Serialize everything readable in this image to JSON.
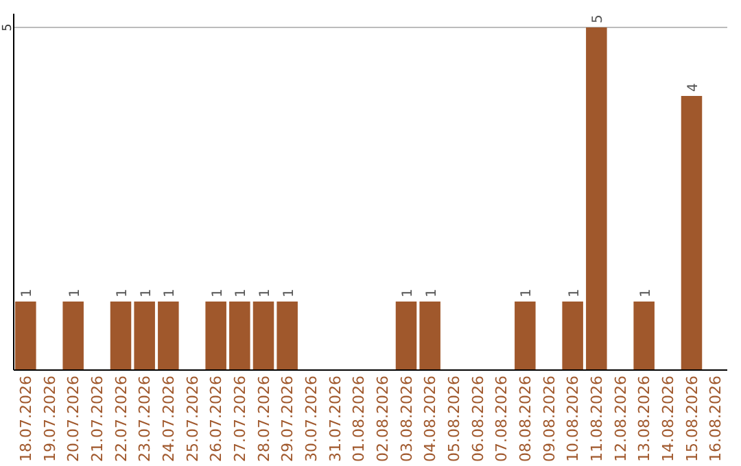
{
  "chart_data": {
    "type": "bar",
    "categories": [
      "18.07.2026",
      "19.07.2026",
      "20.07.2026",
      "21.07.2026",
      "22.07.2026",
      "23.07.2026",
      "24.07.2026",
      "25.07.2026",
      "26.07.2026",
      "27.07.2026",
      "28.07.2026",
      "29.07.2026",
      "30.07.2026",
      "31.07.2026",
      "01.08.2026",
      "02.08.2026",
      "03.08.2026",
      "04.08.2026",
      "05.08.2026",
      "06.08.2026",
      "07.08.2026",
      "08.08.2026",
      "09.08.2026",
      "10.08.2026",
      "11.08.2026",
      "12.08.2026",
      "13.08.2026",
      "14.08.2026",
      "15.08.2026",
      "16.08.2026"
    ],
    "values": [
      1,
      0,
      1,
      0,
      1,
      1,
      1,
      0,
      1,
      1,
      1,
      1,
      0,
      0,
      0,
      0,
      1,
      1,
      0,
      0,
      0,
      1,
      0,
      1,
      5,
      0,
      1,
      0,
      4,
      0
    ],
    "value_labels": [
      "1",
      null,
      "1",
      null,
      "1",
      "1",
      "1",
      null,
      "1",
      "1",
      "1",
      "1",
      null,
      null,
      null,
      null,
      "1",
      "1",
      null,
      null,
      null,
      "1",
      null,
      "1",
      "5",
      null,
      "1",
      null,
      "4",
      null
    ],
    "color": "#a0582c",
    "ylim": [
      0,
      5.2
    ],
    "yticks": [
      5
    ],
    "grid": "y"
  }
}
